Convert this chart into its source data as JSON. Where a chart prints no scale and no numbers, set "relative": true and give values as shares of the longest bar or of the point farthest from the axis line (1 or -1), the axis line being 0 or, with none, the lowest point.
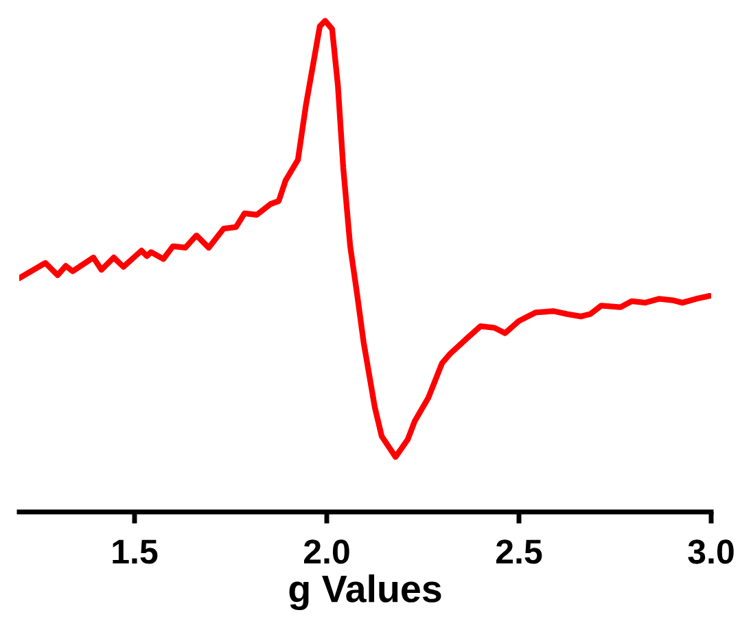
{
  "chart_data": {
    "type": "line",
    "xlabel": "g Values",
    "relative": true,
    "x": [
      1.2,
      1.268,
      1.3,
      1.321,
      1.339,
      1.393,
      1.414,
      1.446,
      1.471,
      1.518,
      1.532,
      1.543,
      1.575,
      1.6,
      1.632,
      1.661,
      1.693,
      1.732,
      1.764,
      1.786,
      1.818,
      1.854,
      1.875,
      1.893,
      1.925,
      1.946,
      1.982,
      1.996,
      2.014,
      2.029,
      2.043,
      2.061,
      2.079,
      2.096,
      2.125,
      2.143,
      2.179,
      2.211,
      2.229,
      2.264,
      2.3,
      2.321,
      2.364,
      2.4,
      2.436,
      2.464,
      2.5,
      2.543,
      2.589,
      2.625,
      2.661,
      2.686,
      2.714,
      2.764,
      2.793,
      2.829,
      2.864,
      2.9,
      2.925,
      2.961,
      2.996
    ],
    "series": [
      {
        "color": "#ff0000",
        "values": [
          0.476,
          0.507,
          0.482,
          0.501,
          0.49,
          0.518,
          0.493,
          0.518,
          0.499,
          0.532,
          0.521,
          0.529,
          0.515,
          0.541,
          0.538,
          0.563,
          0.538,
          0.577,
          0.58,
          0.608,
          0.605,
          0.627,
          0.633,
          0.675,
          0.717,
          0.829,
          0.989,
          1.0,
          0.983,
          0.868,
          0.7,
          0.541,
          0.443,
          0.345,
          0.213,
          0.154,
          0.112,
          0.148,
          0.185,
          0.232,
          0.303,
          0.322,
          0.353,
          0.378,
          0.375,
          0.364,
          0.389,
          0.406,
          0.409,
          0.403,
          0.398,
          0.403,
          0.42,
          0.417,
          0.429,
          0.426,
          0.434,
          0.431,
          0.426,
          0.434,
          0.44
        ]
      }
    ],
    "xlim": [
      1.2,
      3.0
    ],
    "xticks": [
      {
        "value": 1.5,
        "label": "1.5"
      },
      {
        "value": 2.0,
        "label": "2.0"
      },
      {
        "value": 2.5,
        "label": "2.5"
      },
      {
        "value": 3.0,
        "label": "3.0"
      }
    ]
  }
}
